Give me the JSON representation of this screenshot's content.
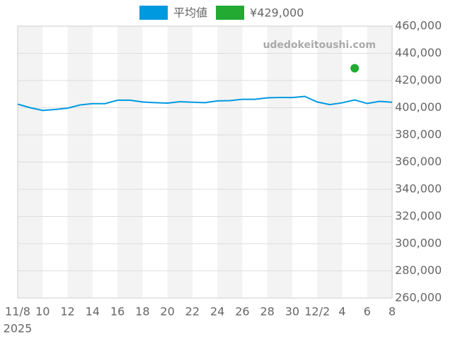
{
  "chart_data": {
    "type": "line",
    "watermark": "udedokeitoushi.com",
    "categories": [
      "11/8",
      null,
      "10",
      null,
      "12",
      null,
      "14",
      null,
      "16",
      null,
      "18",
      null,
      "20",
      null,
      "22",
      null,
      "24",
      null,
      "26",
      null,
      "28",
      null,
      "30",
      null,
      "12/2",
      null,
      "4",
      null,
      "6",
      null,
      "8"
    ],
    "year_label": "2025",
    "series": [
      {
        "name": "平均値",
        "color": "#0099e0",
        "type": "line",
        "values": [
          402600,
          400000,
          398000,
          398700,
          399700,
          402000,
          403000,
          403000,
          405500,
          405500,
          404200,
          403700,
          403400,
          404400,
          404000,
          403700,
          405000,
          405200,
          406200,
          406200,
          407300,
          407500,
          407500,
          408300,
          404200,
          402300,
          403600,
          405700,
          403100,
          404700,
          404000
        ]
      },
      {
        "name": "¥429,000",
        "color": "#22aa33",
        "type": "scatter",
        "values": [
          null,
          null,
          null,
          null,
          null,
          null,
          null,
          null,
          null,
          null,
          null,
          null,
          null,
          null,
          null,
          null,
          null,
          null,
          null,
          null,
          null,
          null,
          null,
          null,
          null,
          null,
          null,
          429000,
          null,
          null,
          null
        ]
      }
    ],
    "ylim": [
      260000,
      460000
    ],
    "yticks": [
      {
        "value": 260000,
        "label": "260,000"
      },
      {
        "value": 280000,
        "label": "280,000"
      },
      {
        "value": 300000,
        "label": "300,000"
      },
      {
        "value": 320000,
        "label": "320,000"
      },
      {
        "value": 340000,
        "label": "340,000"
      },
      {
        "value": 360000,
        "label": "360,000"
      },
      {
        "value": 380000,
        "label": "380,000"
      },
      {
        "value": 400000,
        "label": "400,000"
      },
      {
        "value": 420000,
        "label": "420,000"
      },
      {
        "value": 440000,
        "label": "440,000"
      },
      {
        "value": 460000,
        "label": "460,000"
      }
    ],
    "grid": true,
    "legend": "top"
  }
}
